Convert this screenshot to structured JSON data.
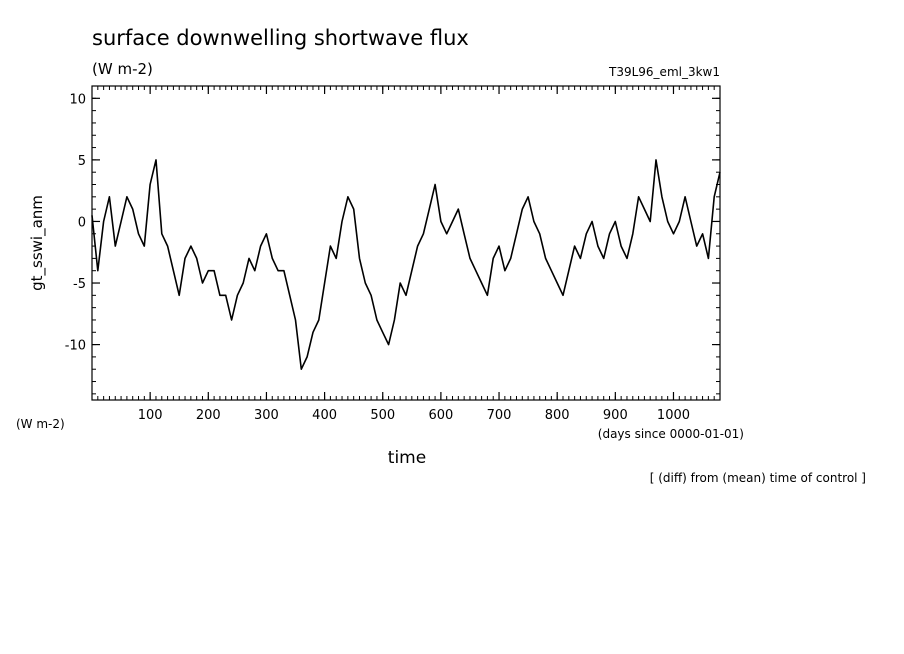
{
  "chart_data": {
    "type": "line",
    "title": "surface downwelling shortwave flux",
    "units": "(W m-2)",
    "experiment": "T39L96_eml_3kw1",
    "ylabel": "gt_sswi_anm",
    "y_units_label": "(W m-2)",
    "xlabel": "time",
    "x_units_label": "(days since 0000-01-01)",
    "footnote": "[ (diff) from (mean) time of control ]",
    "xlim": [
      0,
      1080
    ],
    "ylim": [
      -14.5,
      11
    ],
    "x_ticks": [
      "100",
      "200",
      "300",
      "400",
      "500",
      "600",
      "700",
      "800",
      "900",
      "1000"
    ],
    "x_tick_values": [
      100,
      200,
      300,
      400,
      500,
      600,
      700,
      800,
      900,
      1000
    ],
    "y_ticks": [
      "10",
      "5",
      "0",
      "-5",
      "-10"
    ],
    "y_tick_values": [
      10,
      5,
      0,
      -5,
      -10
    ],
    "grid": false,
    "series": [
      {
        "x": [
          0,
          10,
          20,
          30,
          40,
          50,
          60,
          70,
          80,
          90,
          100,
          110,
          120,
          130,
          140,
          150,
          160,
          170,
          180,
          190,
          200,
          210,
          220,
          230,
          240,
          250,
          260,
          270,
          280,
          290,
          300,
          310,
          320,
          330,
          340,
          350,
          360,
          370,
          380,
          390,
          400,
          410,
          420,
          430,
          440,
          450,
          460,
          470,
          480,
          490,
          500,
          510,
          520,
          530,
          540,
          550,
          560,
          570,
          580,
          590,
          600,
          610,
          620,
          630,
          640,
          650,
          660,
          670,
          680,
          690,
          700,
          710,
          720,
          730,
          740,
          750,
          760,
          770,
          780,
          790,
          800,
          810,
          820,
          830,
          840,
          850,
          860,
          870,
          880,
          890,
          900,
          910,
          920,
          930,
          940,
          950,
          960,
          970,
          980,
          990,
          1000,
          1010,
          1020,
          1030,
          1040,
          1050,
          1060,
          1070,
          1080
        ],
        "y": [
          0.5,
          -4,
          0,
          2,
          -2,
          0,
          2,
          1,
          -1,
          -2,
          3,
          5,
          -1,
          -2,
          -4,
          -6,
          -3,
          -2,
          -3,
          -5,
          -4,
          -4,
          -6,
          -6,
          -8,
          -6,
          -5,
          -3,
          -4,
          -2,
          -1,
          -3,
          -4,
          -4,
          -6,
          -8,
          -12,
          -11,
          -9,
          -8,
          -5,
          -2,
          -3,
          0,
          2,
          1,
          -3,
          -5,
          -6,
          -8,
          -9,
          -10,
          -8,
          -5,
          -6,
          -4,
          -2,
          -1,
          1,
          3,
          0,
          -1,
          0,
          1,
          -1,
          -3,
          -4,
          -5,
          -6,
          -3,
          -2,
          -4,
          -3,
          -1,
          1,
          2,
          0,
          -1,
          -3,
          -4,
          -5,
          -6,
          -4,
          -2,
          -3,
          -1,
          0,
          -2,
          -3,
          -1,
          0,
          -2,
          -3,
          -1,
          2,
          1,
          0,
          5,
          2,
          0,
          -1,
          0,
          2,
          0,
          -2,
          -1,
          -3,
          2,
          4
        ]
      }
    ]
  }
}
